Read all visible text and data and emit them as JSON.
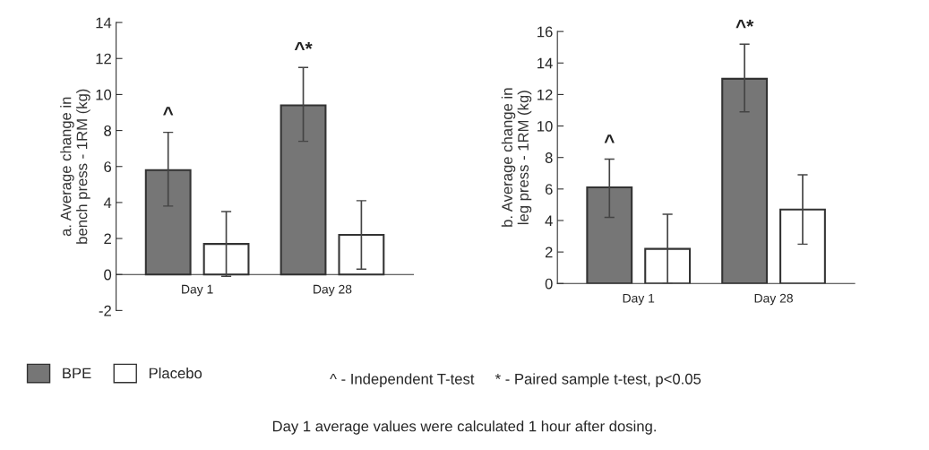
{
  "chart_data": [
    {
      "type": "bar",
      "ylabel": "a. Average change in\nbench press - 1RM (kg)",
      "categories": [
        "Day 1",
        "Day 28"
      ],
      "series": [
        {
          "name": "BPE",
          "color": "#767676",
          "values": [
            5.8,
            9.4
          ],
          "errors": [
            [
              3.8,
              7.9
            ],
            [
              7.4,
              11.5
            ]
          ]
        },
        {
          "name": "Placebo",
          "color": "#ffffff",
          "values": [
            1.7,
            2.2
          ],
          "errors": [
            [
              -0.1,
              3.5
            ],
            [
              0.3,
              4.1
            ]
          ]
        }
      ],
      "ylim": [
        -2,
        14
      ],
      "yticks": [
        -2,
        0,
        2,
        4,
        6,
        8,
        10,
        12,
        14
      ],
      "grid": false,
      "legend": "bottom",
      "annotations": [
        "^",
        "^*",
        "^ - Independent T-test",
        "* - Paired sample t-test, p<0.05",
        "Day 1 average values were calculated 1 hour after dosing."
      ]
    },
    {
      "type": "bar",
      "ylabel": "b. Average change in\nleg press - 1RM (kg)",
      "categories": [
        "Day 1",
        "Day 28"
      ],
      "series": [
        {
          "color": "#767676",
          "values": [
            6.1,
            13.0
          ],
          "errors": [
            [
              4.2,
              7.9
            ],
            [
              10.9,
              15.2
            ]
          ]
        },
        {
          "color": "#ffffff",
          "values": [
            2.2,
            4.7
          ],
          "errors": [
            [
              0,
              4.4
            ],
            [
              2.5,
              6.9
            ]
          ]
        }
      ],
      "ylim": [
        0,
        16
      ],
      "yticks": [
        0,
        2,
        4,
        6,
        8,
        10,
        12,
        14,
        16
      ],
      "grid": false,
      "annotations": [
        "^",
        "^*"
      ]
    }
  ]
}
